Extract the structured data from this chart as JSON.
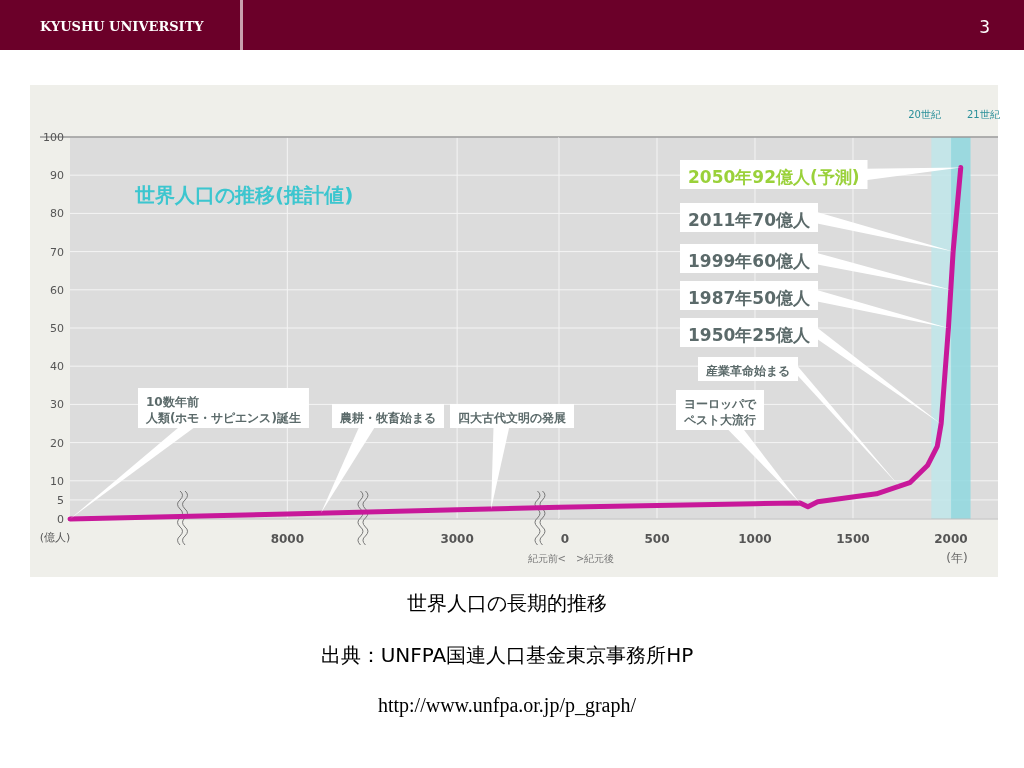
{
  "chart_data": [
    {
      "type": "line",
      "title": "世界人口の推移(推計値)",
      "ylabel": "(億人)",
      "x": [
        -14400,
        -8000,
        -3000,
        0
      ],
      "series": [
        {
          "color": "#c8189a",
          "values": [
            0,
            1.3,
            2.4,
            3.1
          ]
        }
      ],
      "xlim": [
        -14400,
        0
      ],
      "xticks": [
        {
          "value": -8000,
          "label": "8000"
        },
        {
          "value": -3000,
          "label": "3000"
        }
      ],
      "ylim": [
        0,
        100
      ],
      "yticks": [
        0,
        5,
        10,
        20,
        30,
        40,
        50,
        60,
        70,
        80,
        90,
        100
      ],
      "grid": true,
      "marker": "none",
      "line_style": "solid",
      "annotations": [
        "KYUSHU UNIVERSITY",
        "3",
        "世界人口の長期的推移",
        "出典：UNFPA国連人口基金東京事務所HP",
        "http://www.unfpa.or.jp/p_graph/",
        "紀元前<　>紀元後",
        "10数年前人類(ホモ・サピエンス)誕生",
        "農耕・牧畜始まる",
        {
          "text": "四大古代文明の発展",
          "x": -2000,
          "y": 2.6
        }
      ]
    },
    {
      "type": "line",
      "xlabel": "(年)",
      "x": [
        0,
        1000,
        1230,
        1270,
        1320,
        1620,
        1790,
        1880,
        1930,
        1950,
        1987,
        1999,
        2011,
        2050
      ],
      "series": [
        {
          "color": "#c8189a",
          "values": [
            3.1,
            4,
            4.2,
            3.2,
            4.5,
            6.6,
            9.5,
            14,
            19,
            25,
            50,
            60,
            70,
            92
          ]
        }
      ],
      "xlim": [
        0,
        2240
      ],
      "xticks": [
        0,
        500,
        1000,
        1500,
        2000
      ],
      "ylim": [
        0,
        100
      ],
      "yticks": [
        0,
        5,
        10,
        20,
        30,
        40,
        50,
        60,
        70,
        80,
        90,
        100
      ],
      "tick_labels": "x",
      "grid": true,
      "marker": "none",
      "line_style": "solid",
      "bands": [
        {
          "axis": "x",
          "from": 1900,
          "to": 2000,
          "label": "20世紀",
          "color": "#bfe6ea"
        },
        {
          "axis": "x",
          "from": 2000,
          "to": 2100,
          "label": "21世紀",
          "color": "#8fd8df"
        }
      ],
      "annotations": [
        "ヨーロッパでペスト大流行",
        "産業革命始まる",
        "1950年25億人",
        {
          "text": "1987年50億人",
          "x": 1987,
          "y": 50
        },
        {
          "text": "1999年60億人",
          "x": 1999,
          "y": 60
        },
        {
          "text": "2011年70億人",
          "x": 2011,
          "y": 70
        },
        {
          "text": "2050年92億人(予測)",
          "x": 2050,
          "y": 92
        }
      ]
    }
  ]
}
